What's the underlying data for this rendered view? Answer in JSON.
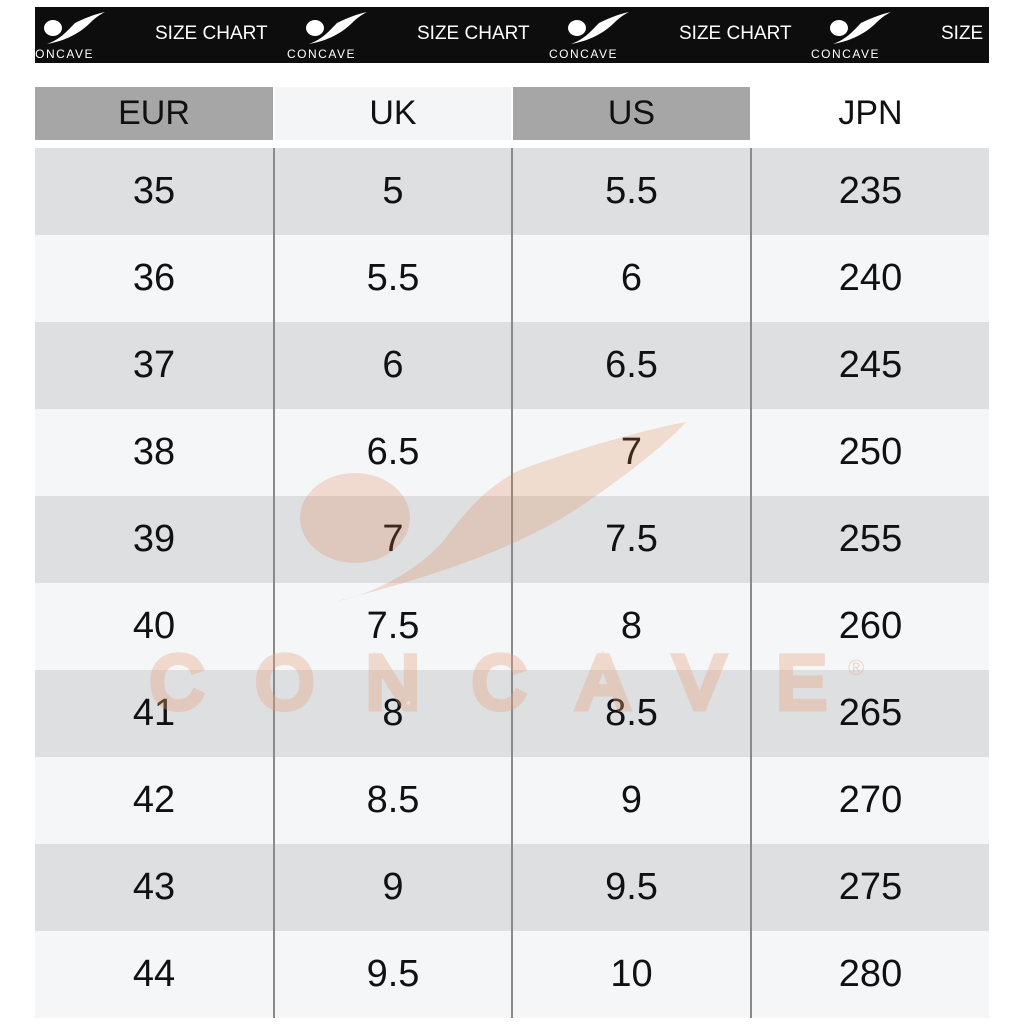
{
  "banner": {
    "brand": "CONCAVE",
    "label": "SIZE CHART",
    "repeats": 4
  },
  "headers": [
    "EUR",
    "UK",
    "US",
    "JPN"
  ],
  "rows": [
    [
      "35",
      "5",
      "5.5",
      "235"
    ],
    [
      "36",
      "5.5",
      "6",
      "240"
    ],
    [
      "37",
      "6",
      "6.5",
      "245"
    ],
    [
      "38",
      "6.5",
      "7",
      "250"
    ],
    [
      "39",
      "7",
      "7.5",
      "255"
    ],
    [
      "40",
      "7.5",
      "8",
      "260"
    ],
    [
      "41",
      "8",
      "8.5",
      "265"
    ],
    [
      "42",
      "8.5",
      "9",
      "270"
    ],
    [
      "43",
      "9",
      "9.5",
      "275"
    ],
    [
      "44",
      "9.5",
      "10",
      "280"
    ]
  ],
  "watermark": {
    "text": "CONCAVE",
    "mark": "®",
    "color": "#e8a07a"
  },
  "colors": {
    "banner": "#0d0d0d",
    "header_dark": "#a6a6a6",
    "header_light": "#f4f5f7",
    "row_dark": "#dedfe1",
    "row_light": "#f5f6f8"
  }
}
